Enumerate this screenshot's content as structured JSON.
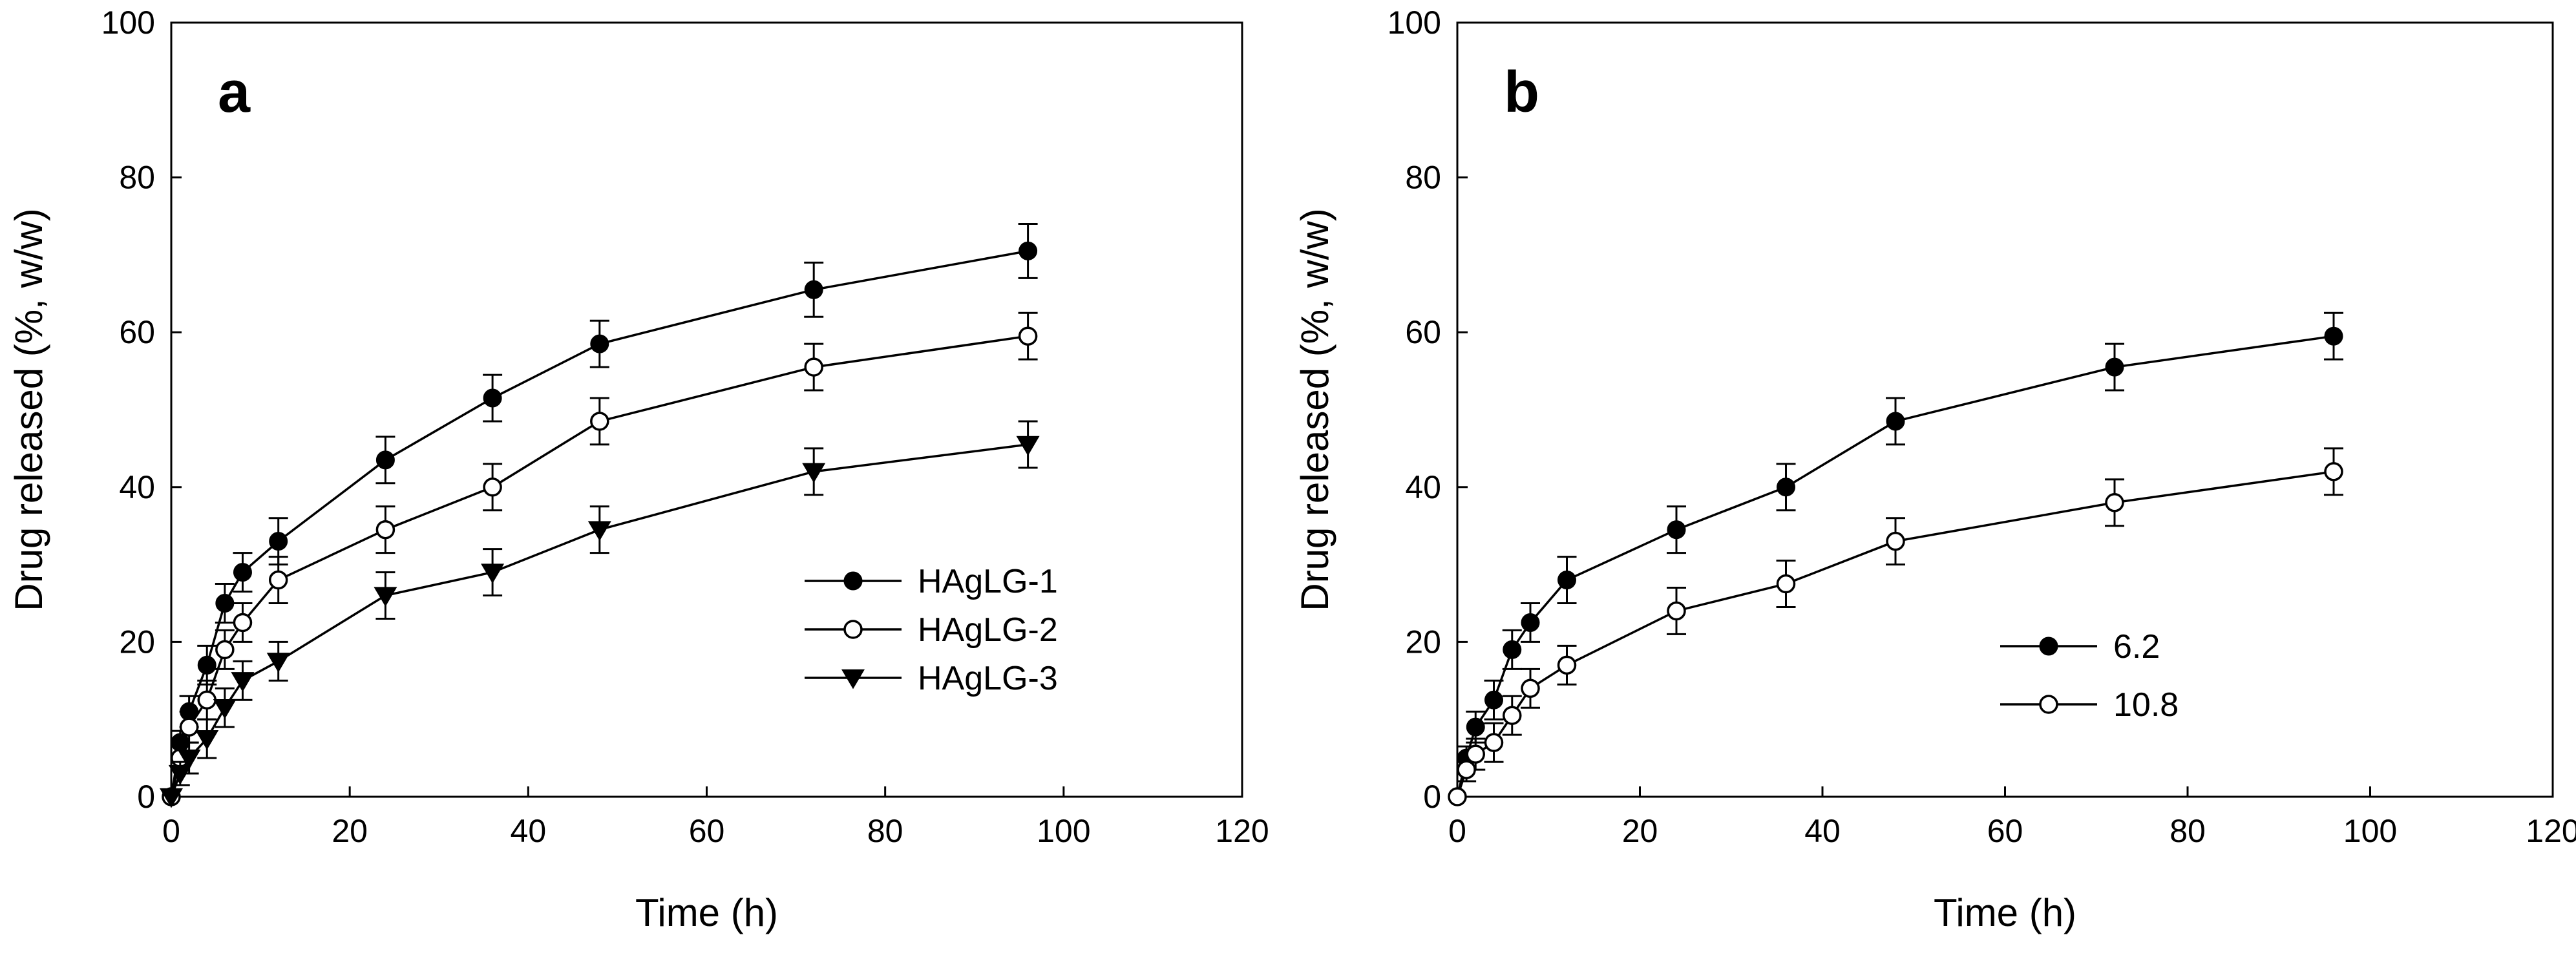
{
  "chart_data": [
    {
      "type": "line",
      "panel_label": "a",
      "xlabel": "Time (h)",
      "ylabel": "Drug released (%, w/w)",
      "xlim": [
        0,
        120
      ],
      "ylim": [
        0,
        100
      ],
      "xticks": [
        0,
        20,
        40,
        60,
        80,
        100,
        120
      ],
      "yticks": [
        0,
        20,
        40,
        60,
        80,
        100
      ],
      "grid": false,
      "legend_position": "center-right",
      "x": [
        0,
        1,
        2,
        4,
        6,
        8,
        12,
        24,
        36,
        48,
        72,
        96
      ],
      "series": [
        {
          "name": "HAgLG-1",
          "marker": "filled-circle",
          "values": [
            0,
            7,
            11,
            17,
            25,
            29,
            33,
            43.5,
            51.5,
            58.5,
            65.5,
            70.5
          ],
          "errors": [
            0,
            1.5,
            2,
            2.5,
            2.5,
            2.5,
            3,
            3,
            3,
            3,
            3.5,
            3.5
          ]
        },
        {
          "name": "HAgLG-2",
          "marker": "open-circle",
          "values": [
            0,
            5,
            9,
            12.5,
            19,
            22.5,
            28,
            34.5,
            40,
            48.5,
            55.5,
            59.5
          ],
          "errors": [
            0,
            1.5,
            2,
            2.5,
            2.5,
            2.5,
            3,
            3,
            3,
            3,
            3,
            3
          ]
        },
        {
          "name": "HAgLG-3",
          "marker": "filled-triangle-down",
          "values": [
            0,
            3,
            5,
            7.5,
            11.5,
            15,
            17.5,
            26,
            29,
            34.5,
            42,
            45.5
          ],
          "errors": [
            0,
            1.5,
            2,
            2.5,
            2.5,
            2.5,
            2.5,
            3,
            3,
            3,
            3,
            3
          ]
        }
      ]
    },
    {
      "type": "line",
      "panel_label": "b",
      "xlabel": "Time (h)",
      "ylabel": "Drug released (%, w/w)",
      "xlim": [
        0,
        120
      ],
      "ylim": [
        0,
        100
      ],
      "xticks": [
        0,
        20,
        40,
        60,
        80,
        100,
        120
      ],
      "yticks": [
        0,
        20,
        40,
        60,
        80,
        100
      ],
      "grid": false,
      "legend_position": "lower-left",
      "x": [
        0,
        1,
        2,
        4,
        6,
        8,
        12,
        24,
        36,
        48,
        72,
        96
      ],
      "series": [
        {
          "name": "6.2",
          "marker": "filled-circle",
          "values": [
            0,
            5,
            9,
            12.5,
            19,
            22.5,
            28,
            34.5,
            40,
            48.5,
            55.5,
            59.5
          ],
          "errors": [
            0,
            1.5,
            2,
            2.5,
            2.5,
            2.5,
            3,
            3,
            3,
            3,
            3,
            3
          ]
        },
        {
          "name": "10.8",
          "marker": "open-circle",
          "values": [
            0,
            3.5,
            5.5,
            7,
            10.5,
            14,
            17,
            24,
            27.5,
            33,
            38,
            42
          ],
          "errors": [
            0,
            1.5,
            2,
            2.5,
            2.5,
            2.5,
            2.5,
            3,
            3,
            3,
            3,
            3
          ]
        }
      ]
    }
  ]
}
